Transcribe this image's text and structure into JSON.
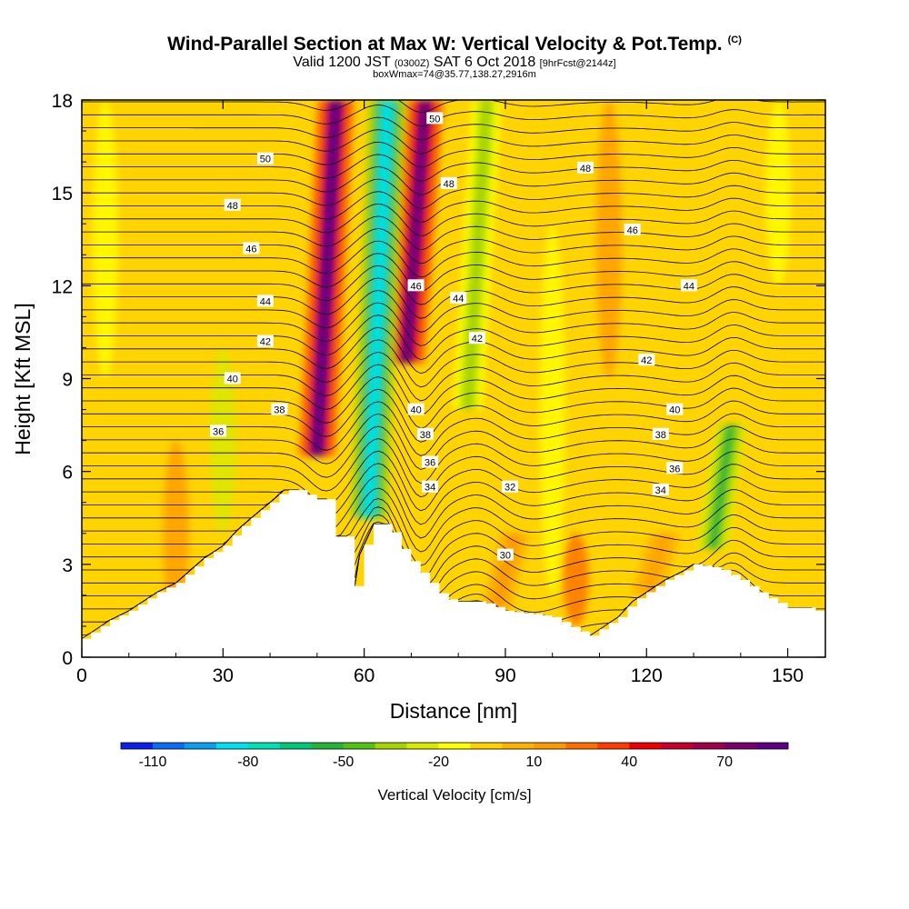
{
  "title": {
    "main": "Wind-Parallel Section at Max W: Vertical Velocity & Pot.Temp.",
    "copyright": "(C)",
    "valid_prefix": "Valid 1200 JST",
    "valid_z": "(0300Z)",
    "valid_date": "SAT 6 Oct 2018",
    "forecast": "[9hrFcst@2144z]",
    "box_info": "boxWmax=74@35.77,138.27,2916m"
  },
  "chart_data": {
    "type": "heatmap",
    "xlabel": "Distance [nm]",
    "ylabel": "Height [Kft MSL]",
    "xlim": [
      0,
      158
    ],
    "ylim": [
      0,
      18
    ],
    "xticks": [
      "0",
      "30",
      "60",
      "90",
      "120",
      "150"
    ],
    "yticks": [
      "0",
      "3",
      "6",
      "9",
      "12",
      "15",
      "18"
    ],
    "terrain": {
      "x": [
        0,
        3,
        6,
        10,
        13,
        16,
        20,
        23,
        26,
        30,
        33,
        36,
        40,
        43,
        46,
        50,
        52,
        53,
        56,
        58,
        59,
        62,
        65,
        68,
        71,
        74,
        77,
        80,
        85,
        90,
        96,
        100,
        105,
        108,
        110,
        114,
        117,
        120,
        124,
        128,
        130,
        135,
        140,
        145,
        150,
        155,
        158
      ],
      "kft": [
        0.6,
        0.9,
        1.2,
        1.5,
        1.8,
        2.1,
        2.4,
        2.8,
        3.2,
        3.6,
        4.1,
        4.5,
        5.0,
        5.4,
        5.4,
        5.1,
        5.1,
        3.9,
        3.9,
        2.3,
        3.3,
        4.3,
        4.3,
        3.5,
        2.9,
        2.4,
        1.9,
        1.8,
        1.8,
        1.5,
        1.4,
        1.3,
        0.9,
        0.7,
        0.9,
        1.3,
        1.8,
        2.1,
        2.5,
        2.8,
        3.0,
        2.9,
        2.5,
        2.0,
        1.6,
        1.6,
        1.3
      ]
    },
    "updraft_cores": [
      {
        "x": 52,
        "ytop": 18,
        "ybot": 6.5,
        "w": 90
      },
      {
        "x": 71,
        "ytop": 18,
        "ybot": 9.5,
        "w": 85
      },
      {
        "x": 90,
        "ytop": 4,
        "ybot": 1.5,
        "w": 20
      },
      {
        "x": 122,
        "ytop": 4,
        "ybot": 2,
        "w": 15
      }
    ],
    "downdraft_cores": [
      {
        "x": 63,
        "ytop": 18,
        "ybot": 4.5,
        "w": -80
      },
      {
        "x": 136,
        "ytop": 7.5,
        "ybot": 3.5,
        "w": -50
      },
      {
        "x": 84,
        "ytop": 18,
        "ybot": 8,
        "w": -35
      }
    ],
    "theta_contours": [
      {
        "label": "30",
        "lx": 90,
        "ly": 3.3
      },
      {
        "label": "32",
        "lx": 91,
        "ly": 5.5
      },
      {
        "label": "34",
        "lx": 74,
        "ly": 5.5
      },
      {
        "label": "34",
        "lx": 123,
        "ly": 5.4
      },
      {
        "label": "36",
        "lx": 29,
        "ly": 7.3
      },
      {
        "label": "36",
        "lx": 74,
        "ly": 6.3
      },
      {
        "label": "36",
        "lx": 126,
        "ly": 6.1
      },
      {
        "label": "38",
        "lx": 42,
        "ly": 8.0
      },
      {
        "label": "38",
        "lx": 73,
        "ly": 7.2
      },
      {
        "label": "38",
        "lx": 123,
        "ly": 7.2
      },
      {
        "label": "40",
        "lx": 32,
        "ly": 9.0
      },
      {
        "label": "40",
        "lx": 71,
        "ly": 8.0
      },
      {
        "label": "40",
        "lx": 126,
        "ly": 8.0
      },
      {
        "label": "42",
        "lx": 39,
        "ly": 10.2
      },
      {
        "label": "42",
        "lx": 84,
        "ly": 10.3
      },
      {
        "label": "42",
        "lx": 120,
        "ly": 9.6
      },
      {
        "label": "44",
        "lx": 39,
        "ly": 11.5
      },
      {
        "label": "44",
        "lx": 80,
        "ly": 11.6
      },
      {
        "label": "44",
        "lx": 129,
        "ly": 12.0
      },
      {
        "label": "46",
        "lx": 36,
        "ly": 13.2
      },
      {
        "label": "46",
        "lx": 71,
        "ly": 12.0
      },
      {
        "label": "46",
        "lx": 117,
        "ly": 13.8
      },
      {
        "label": "48",
        "lx": 32,
        "ly": 14.6
      },
      {
        "label": "48",
        "lx": 78,
        "ly": 15.3
      },
      {
        "label": "48",
        "lx": 107,
        "ly": 15.8
      },
      {
        "label": "50",
        "lx": 39,
        "ly": 16.1
      },
      {
        "label": "50",
        "lx": 75,
        "ly": 17.4
      }
    ]
  },
  "colorbar": {
    "title": "Vertical Velocity [cm/s]",
    "labels": [
      "-110",
      "-80",
      "-50",
      "-20",
      "10",
      "40",
      "70"
    ],
    "colors": [
      "#0b1fe6",
      "#0a6cf2",
      "#0b9ef0",
      "#00dff0",
      "#00e0b5",
      "#00c878",
      "#23b33a",
      "#52c213",
      "#a6d400",
      "#d8ea00",
      "#ffff00",
      "#ffd200",
      "#ffb100",
      "#ff9a00",
      "#ff6e00",
      "#ff3c00",
      "#ee0000",
      "#c4002a",
      "#a0004a",
      "#7c006a",
      "#5a0086"
    ]
  }
}
